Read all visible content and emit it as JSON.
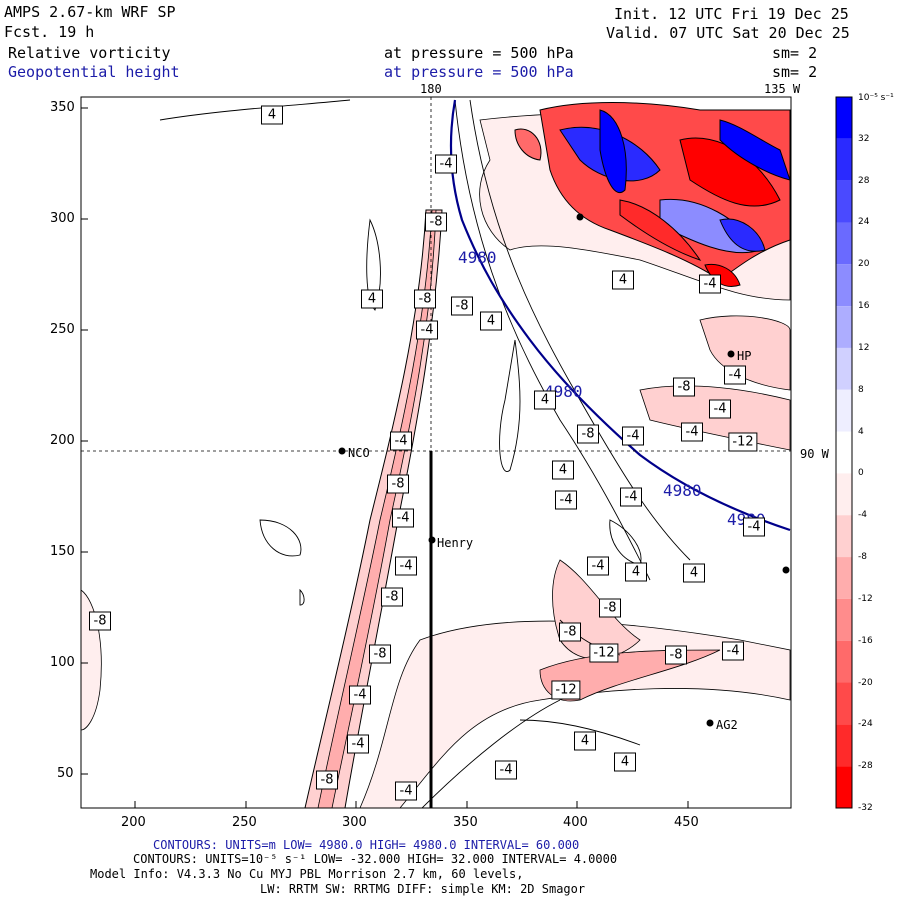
{
  "header": {
    "model": "AMPS 2.67-km WRF SP",
    "forecast": "Fcst.    19 h",
    "init": "Init. 12 UTC Fri 19 Dec 25",
    "valid": "Valid. 07 UTC Sat 20 Dec 25",
    "field1_name": "Relative vorticity",
    "field1_level": "at pressure =  500 hPa",
    "field1_smooth": "sm= 2",
    "field2_name": "Geopotential height",
    "field2_level": "at pressure =  500 hPa",
    "field2_smooth": "sm= 2"
  },
  "map": {
    "lon_label_top_1": "180",
    "lon_label_top_2": "135 W",
    "lon_label_right": "90 W",
    "x_ticks": [
      "200",
      "250",
      "300",
      "350",
      "400",
      "450"
    ],
    "y_ticks": [
      "350",
      "300",
      "250",
      "200",
      "150",
      "100",
      "50"
    ],
    "stations": [
      {
        "name": "NCO"
      },
      {
        "name": "Henry"
      },
      {
        "name": "AG2"
      },
      {
        "name": "HP"
      }
    ],
    "height_contour_labels": [
      "4980",
      "4980",
      "4980",
      "4980"
    ],
    "vorticity_labels": [
      "4",
      "-4",
      "-8",
      "-8",
      "4",
      "-8",
      "-4",
      "4",
      "4",
      "-4",
      "-4",
      "-8",
      "-4",
      "-4",
      "-4",
      "-8",
      "-12",
      "-4",
      "-8",
      "-4",
      "-4",
      "4",
      "-4",
      "-4",
      "4",
      "-4",
      "-8",
      "-8",
      "-12",
      "-8",
      "-4",
      "-12",
      "-8",
      "-8",
      "-4",
      "-4",
      "4",
      "4",
      "-4",
      "4",
      "-4",
      "4",
      "-8",
      "-8",
      "-4"
    ]
  },
  "colorbar": {
    "unit_label": "10⁻⁵ s⁻¹",
    "ticks": [
      "32",
      "28",
      "24",
      "20",
      "16",
      "12",
      "8",
      "4",
      "0",
      "-4",
      "-8",
      "-12",
      "-16",
      "-20",
      "-24",
      "-28",
      "-32"
    ],
    "colors": [
      "#0000ff",
      "#2a2aff",
      "#4a4aff",
      "#6a6aff",
      "#8c8cff",
      "#adadff",
      "#d0d0ff",
      "#eeeeff",
      "#ffffff",
      "#ffeeee",
      "#ffd0d0",
      "#ffadad",
      "#ff8c8c",
      "#ff6a6a",
      "#ff4a4a",
      "#ff2a2a",
      "#ff0000"
    ]
  },
  "footer": {
    "line1": "CONTOURS:  UNITS=m  LOW=  4980.0        HIGH=  4980.0       INTERVAL=   60.000",
    "line2": "CONTOURS:  UNITS=10⁻⁵ s⁻¹  LOW= -32.000       HIGH=  32.000       INTERVAL=   4.0000",
    "line3": "Model Info: V4.3.3    No Cu   MYJ PBL  Morrison          2.7 km,  60 levels,",
    "line4": "LW: RRTM SW: RRTMG   DIFF: simple KM: 2D Smagor"
  }
}
